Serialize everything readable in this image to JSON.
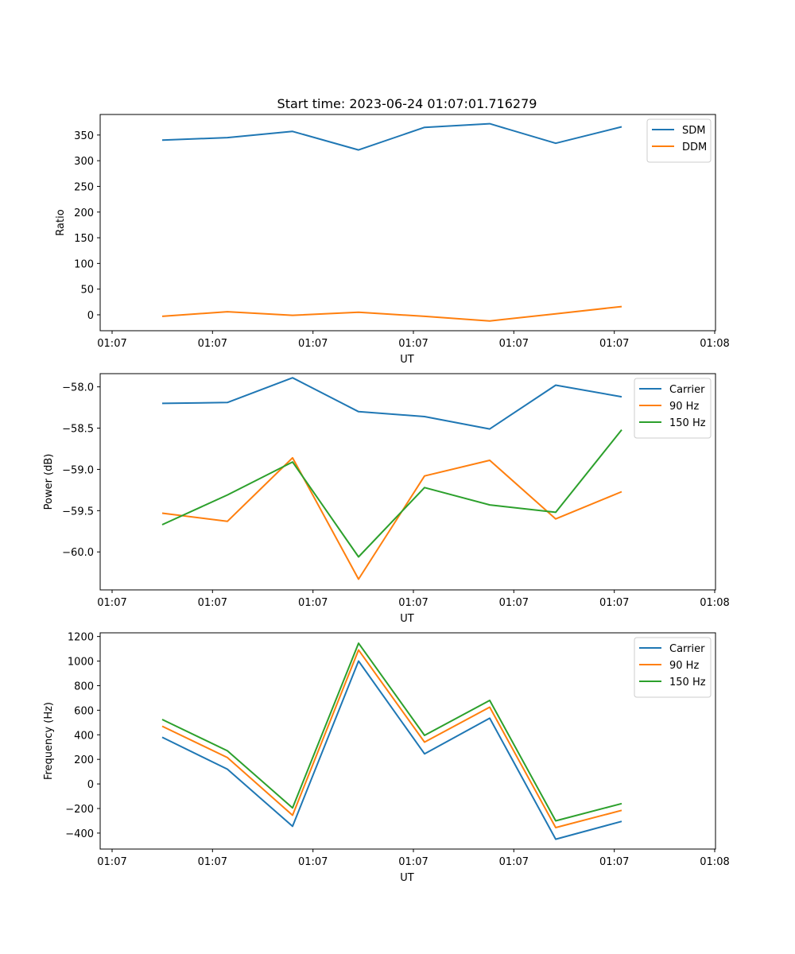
{
  "figure": {
    "title": "Start time: 2023-06-24 01:07:01.716279"
  },
  "chart_data": [
    {
      "type": "line",
      "xlabel": "UT",
      "ylabel": "Ratio",
      "xticks": [
        "01:07",
        "01:07",
        "01:07",
        "01:07",
        "01:07",
        "01:07",
        "01:08"
      ],
      "ylim": [
        -31,
        390
      ],
      "yticks": [
        0,
        50,
        100,
        150,
        200,
        250,
        300,
        350
      ],
      "legend_position": "upper right",
      "series": [
        {
          "name": "SDM",
          "color": "#1f77b4",
          "values": [
            340,
            345,
            357,
            321,
            365,
            372,
            334,
            366
          ]
        },
        {
          "name": "DDM",
          "color": "#ff7f0e",
          "values": [
            -3,
            6,
            -1,
            5,
            -3,
            -12,
            2,
            16
          ]
        }
      ]
    },
    {
      "type": "line",
      "xlabel": "UT",
      "ylabel": "Power (dB)",
      "xticks": [
        "01:07",
        "01:07",
        "01:07",
        "01:07",
        "01:07",
        "01:07",
        "01:08"
      ],
      "ylim": [
        -60.46,
        -57.84
      ],
      "yticks": [
        -60.0,
        -59.5,
        -59.0,
        -58.5,
        -58.0
      ],
      "legend_position": "upper right",
      "series": [
        {
          "name": "Carrier",
          "color": "#1f77b4",
          "values": [
            -58.2,
            -58.19,
            -57.89,
            -58.3,
            -58.36,
            -58.51,
            -57.98,
            -58.12
          ]
        },
        {
          "name": "90 Hz",
          "color": "#ff7f0e",
          "values": [
            -59.53,
            -59.63,
            -58.86,
            -60.33,
            -59.08,
            -58.89,
            -59.6,
            -59.27
          ]
        },
        {
          "name": "150 Hz",
          "color": "#2ca02c",
          "values": [
            -59.67,
            -59.31,
            -58.91,
            -60.06,
            -59.22,
            -59.43,
            -59.52,
            -58.52
          ]
        }
      ]
    },
    {
      "type": "line",
      "xlabel": "UT",
      "ylabel": "Frequency (Hz)",
      "xticks": [
        "01:07",
        "01:07",
        "01:07",
        "01:07",
        "01:07",
        "01:07",
        "01:08"
      ],
      "ylim": [
        -530,
        1230
      ],
      "yticks": [
        -400,
        -200,
        0,
        200,
        400,
        600,
        800,
        1000,
        1200
      ],
      "legend_position": "upper right",
      "series": [
        {
          "name": "Carrier",
          "color": "#1f77b4",
          "values": [
            380,
            120,
            -345,
            1000,
            245,
            535,
            -450,
            -305
          ]
        },
        {
          "name": "90 Hz",
          "color": "#ff7f0e",
          "values": [
            470,
            215,
            -255,
            1090,
            340,
            625,
            -355,
            -215
          ]
        },
        {
          "name": "150 Hz",
          "color": "#2ca02c",
          "values": [
            525,
            270,
            -195,
            1145,
            395,
            680,
            -300,
            -160
          ]
        }
      ]
    }
  ]
}
